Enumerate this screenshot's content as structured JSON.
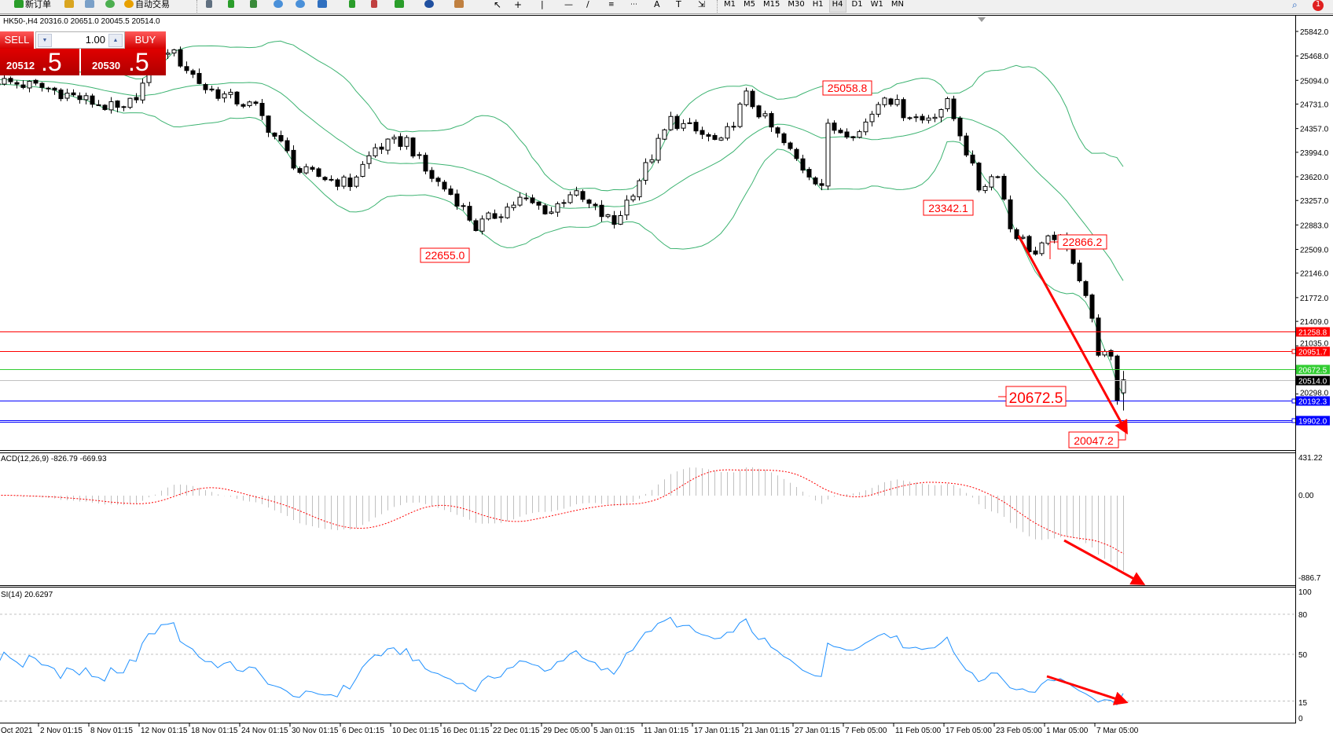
{
  "toolbar": {
    "new_order_label": "新订单",
    "auto_trading_label": "自动交易",
    "timeframes": [
      "M1",
      "M5",
      "M15",
      "M30",
      "H1",
      "H4",
      "D1",
      "W1",
      "MN"
    ],
    "active_timeframe": "H4",
    "notification_count": "1"
  },
  "chart_info": "HK50-,H4  20316.0 20651.0 20045.5 20514.0",
  "trade_panel": {
    "sell_label": "SELL",
    "buy_label": "BUY",
    "lot_value": "1.00",
    "bid_main": "20512",
    "bid_pip": ".5",
    "ask_main": "20530",
    "ask_pip": ".5"
  },
  "price_axis": [
    "25842.0",
    "25468.0",
    "25094.0",
    "24731.0",
    "24357.0",
    "23994.0",
    "23620.0",
    "23257.0",
    "22883.0",
    "22509.0",
    "22146.0",
    "21772.0",
    "21409.0",
    "21035.0",
    "20298.0"
  ],
  "levels": [
    {
      "value": "21258.8",
      "color": "#ff0000",
      "text_color": "#ffffff"
    },
    {
      "value": "20951.7",
      "color": "#ff0000",
      "text_color": "#ffffff"
    },
    {
      "value": "20672.5",
      "color": "#32cd32",
      "text_color": "#ffffff"
    },
    {
      "value": "20514.0",
      "color": "#000000",
      "text_color": "#ffffff",
      "line_color": "#c0c0c0"
    },
    {
      "value": "20192.3",
      "color": "#0000ff",
      "text_color": "#ffffff"
    },
    {
      "value": "19902.0",
      "color": "#0000ff",
      "text_color": "#ffffff"
    }
  ],
  "annotations": [
    "25058.8",
    "22655.0",
    "23342.1",
    "22866.2",
    "20672.5",
    "20047.2"
  ],
  "macd": {
    "label": "ACD(12,26,9) -826.79 -669.93",
    "axis": [
      "431.22",
      "0.00",
      "-886.7"
    ]
  },
  "rsi": {
    "label": "SI(14) 20.6297",
    "axis": [
      "100",
      "80",
      "50",
      "15",
      "0"
    ],
    "levels": [
      80,
      50,
      15
    ]
  },
  "time_axis": [
    "Oct 2021",
    "2 Nov 01:15",
    "8 Nov 01:15",
    "12 Nov 01:15",
    "18 Nov 01:15",
    "24 Nov 01:15",
    "30 Nov 01:15",
    "6 Dec 01:15",
    "10 Dec 01:15",
    "16 Dec 01:15",
    "22 Dec 01:15",
    "29 Dec 05:00",
    "5 Jan 01:15",
    "11 Jan 01:15",
    "17 Jan 01:15",
    "21 Jan 01:15",
    "27 Jan 01:15",
    "7 Feb 05:00",
    "11 Feb 05:00",
    "17 Feb 05:00",
    "23 Feb 05:00",
    "1 Mar 05:00",
    "7 Mar 05:00"
  ],
  "colors": {
    "bands": "#3cb371",
    "rsi_line": "#1e90ff",
    "macd_hist": "#c0c0c0",
    "macd_signal": "#ff0000",
    "arrow": "#ff0000",
    "annotation": "#ff0000"
  },
  "chart_data": {
    "type": "candlestick",
    "symbol": "HK50-",
    "timeframe": "H4",
    "indicators": [
      "Bollinger Bands",
      "MACD(12,26,9)",
      "RSI(14)"
    ],
    "bar_count": 180,
    "approx_closes": [
      [
        0,
        25090
      ],
      [
        8,
        24970
      ],
      [
        20,
        24610
      ],
      [
        27,
        25580
      ],
      [
        33,
        24970
      ],
      [
        41,
        24670
      ],
      [
        44,
        24240
      ],
      [
        48,
        23700
      ],
      [
        56,
        23510
      ],
      [
        60,
        24060
      ],
      [
        65,
        24180
      ],
      [
        68,
        23700
      ],
      [
        73,
        23270
      ],
      [
        76,
        22850
      ],
      [
        83,
        23270
      ],
      [
        88,
        23090
      ],
      [
        91,
        23390
      ],
      [
        98,
        22900
      ],
      [
        103,
        23760
      ],
      [
        107,
        24490
      ],
      [
        115,
        24120
      ],
      [
        119,
        24850
      ],
      [
        124,
        24240
      ],
      [
        128,
        23760
      ],
      [
        131,
        23510
      ],
      [
        132,
        24360
      ],
      [
        137,
        24300
      ],
      [
        141,
        24910
      ],
      [
        144,
        24610
      ],
      [
        147,
        24490
      ],
      [
        151,
        24730
      ],
      [
        153,
        24300
      ],
      [
        156,
        23450
      ],
      [
        159,
        23700
      ],
      [
        161,
        22850
      ],
      [
        165,
        22430
      ],
      [
        168,
        22730
      ],
      [
        171,
        22370
      ],
      [
        173,
        21820
      ],
      [
        175,
        20970
      ],
      [
        177,
        20790
      ],
      [
        178,
        20240
      ],
      [
        179,
        20514
      ]
    ],
    "last_bar": {
      "open": 20316.0,
      "high": 20651.0,
      "low": 20045.5,
      "close": 20514.0
    },
    "price_range": [
      19850,
      25900
    ]
  }
}
